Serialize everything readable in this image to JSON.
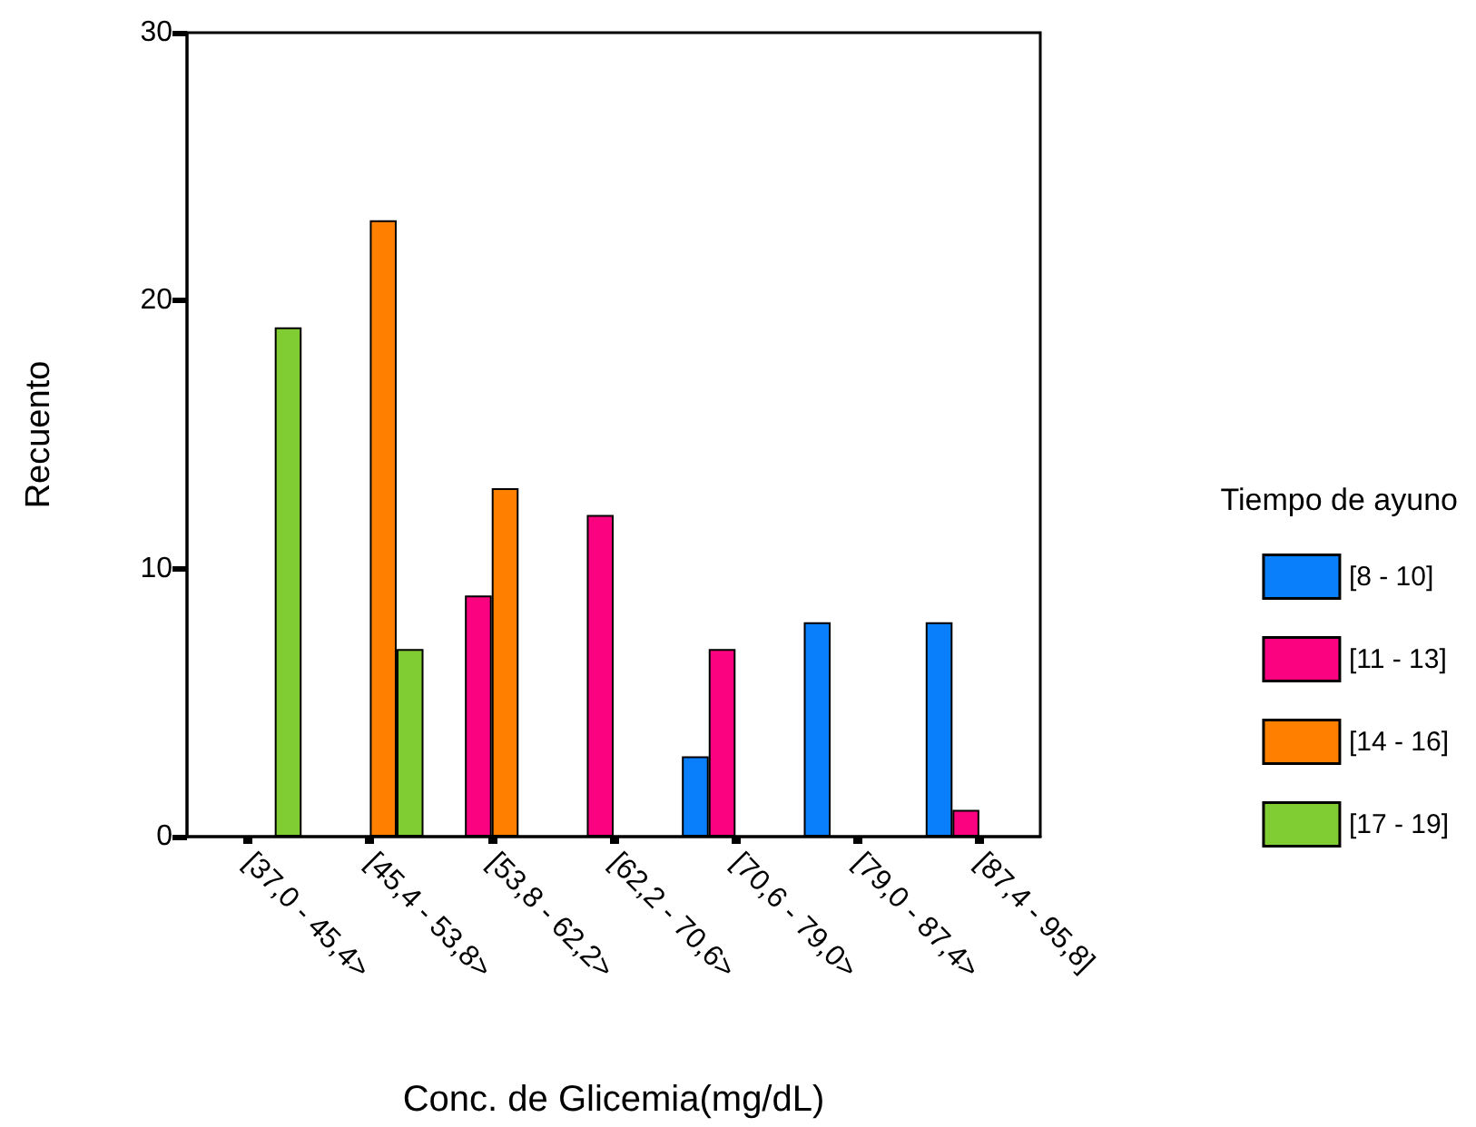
{
  "chart_data": {
    "type": "bar",
    "xlabel": "Conc. de Glicemia(mg/dL)",
    "ylabel": "Recuento",
    "legend_title": "Tiempo de ayuno",
    "categories": [
      "[37,0 - 45,4>",
      "[45,4 - 53,8>",
      "[53,8 - 62,2>",
      "[62,2 - 70,6>",
      "[70,6 - 79,0>",
      "[79,0 - 87,4>",
      "[87,4 - 95,8]"
    ],
    "series": [
      {
        "name": "[8 - 10]",
        "color": "#0a7ffb",
        "values": [
          null,
          null,
          null,
          null,
          3,
          8,
          8
        ]
      },
      {
        "name": "[11 - 13]",
        "color": "#fb0280",
        "values": [
          null,
          null,
          9,
          12,
          7,
          null,
          1
        ]
      },
      {
        "name": "[14 - 16]",
        "color": "#ff8000",
        "values": [
          null,
          23,
          13,
          null,
          null,
          null,
          null
        ]
      },
      {
        "name": "[17 - 19]",
        "color": "#80cc33",
        "values": [
          19,
          7,
          null,
          null,
          null,
          null,
          null
        ]
      }
    ],
    "ylim": [
      0,
      30
    ],
    "yticks": [
      0,
      10,
      20,
      30
    ],
    "grid": false,
    "legend": "right"
  }
}
